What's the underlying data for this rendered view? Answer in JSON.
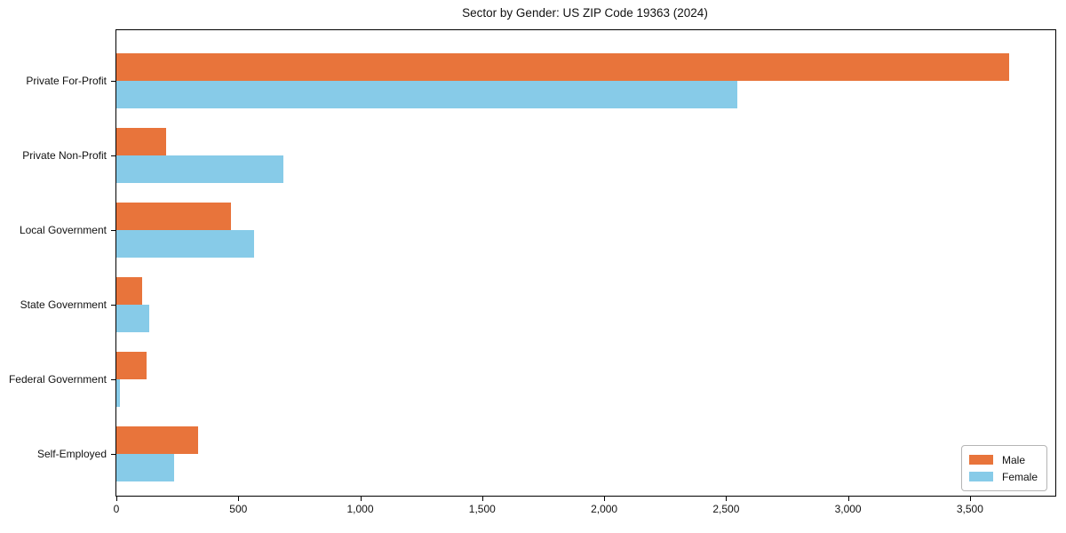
{
  "chart_data": {
    "type": "bar",
    "orientation": "horizontal",
    "title": "Sector by Gender: US ZIP Code 19363 (2024)",
    "categories": [
      "Private For-Profit",
      "Private Non-Profit",
      "Local Government",
      "State Government",
      "Federal Government",
      "Self-Employed"
    ],
    "series": [
      {
        "name": "Male",
        "color": "#e8743b",
        "values": [
          3660,
          205,
          470,
          105,
          122,
          335
        ]
      },
      {
        "name": "Female",
        "color": "#87cbe8",
        "values": [
          2545,
          685,
          565,
          133,
          15,
          235
        ]
      }
    ],
    "xlabel": "",
    "ylabel": "",
    "xlim": [
      0,
      3850
    ],
    "xticks": [
      0,
      500,
      1000,
      1500,
      2000,
      2500,
      3000,
      3500
    ],
    "xtick_labels": [
      "0",
      "500",
      "1,000",
      "1,500",
      "2,000",
      "2,500",
      "3,000",
      "3,500"
    ],
    "grid": false,
    "legend": {
      "position": "lower right",
      "labels": [
        "Male",
        "Female"
      ]
    },
    "colors": {
      "male": "#e8743b",
      "female": "#87cbe8",
      "spine": "#000000",
      "text": "#111111",
      "background": "#ffffff"
    }
  }
}
